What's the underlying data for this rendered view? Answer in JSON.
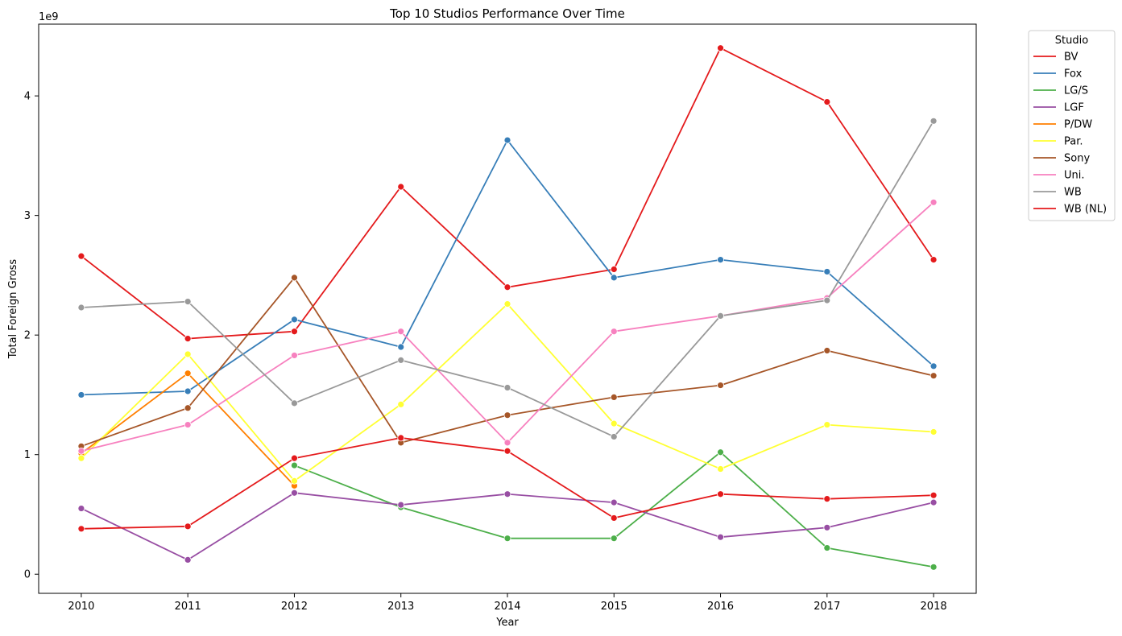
{
  "chart_data": {
    "type": "line",
    "title": "Top 10 Studios Performance Over Time",
    "xlabel": "Year",
    "ylabel": "Total Foreign Gross",
    "y_offset_label": "1e9",
    "x": [
      2010,
      2011,
      2012,
      2013,
      2014,
      2015,
      2016,
      2017,
      2018
    ],
    "x_tick_labels": [
      "2010",
      "2011",
      "2012",
      "2013",
      "2014",
      "2015",
      "2016",
      "2017",
      "2018"
    ],
    "y_ticks": [
      0,
      1,
      2,
      3,
      4
    ],
    "y_tick_labels": [
      "0",
      "1",
      "2",
      "3",
      "4"
    ],
    "ylim": [
      -0.16,
      4.6
    ],
    "xlim": [
      2009.6,
      2018.4
    ],
    "grid": false,
    "legend": {
      "title": "Studio",
      "placement": "outside-right-top"
    },
    "series": [
      {
        "name": "BV",
        "color": "#e41a1c",
        "points": [
          [
            2010,
            2.66
          ],
          [
            2011,
            1.97
          ],
          [
            2012,
            2.03
          ],
          [
            2013,
            3.24
          ],
          [
            2014,
            2.4
          ],
          [
            2015,
            2.55
          ],
          [
            2016,
            4.4
          ],
          [
            2017,
            3.95
          ],
          [
            2018,
            2.63
          ]
        ]
      },
      {
        "name": "Fox",
        "color": "#377eb8",
        "points": [
          [
            2010,
            1.5
          ],
          [
            2011,
            1.53
          ],
          [
            2012,
            2.13
          ],
          [
            2013,
            1.9
          ],
          [
            2014,
            3.63
          ],
          [
            2015,
            2.48
          ],
          [
            2016,
            2.63
          ],
          [
            2017,
            2.53
          ],
          [
            2018,
            1.74
          ]
        ]
      },
      {
        "name": "LG/S",
        "color": "#4daf4a",
        "points": [
          [
            2012,
            0.91
          ],
          [
            2013,
            0.56
          ],
          [
            2014,
            0.3
          ],
          [
            2015,
            0.3
          ],
          [
            2016,
            1.02
          ],
          [
            2017,
            0.22
          ],
          [
            2018,
            0.06
          ]
        ]
      },
      {
        "name": "LGF",
        "color": "#984ea3",
        "points": [
          [
            2010,
            0.55
          ],
          [
            2011,
            0.12
          ],
          [
            2012,
            0.68
          ],
          [
            2013,
            0.58
          ],
          [
            2014,
            0.67
          ],
          [
            2015,
            0.6
          ],
          [
            2016,
            0.31
          ],
          [
            2017,
            0.39
          ],
          [
            2018,
            0.6
          ]
        ]
      },
      {
        "name": "P/DW",
        "color": "#ff7f00",
        "points": [
          [
            2010,
            1.01
          ],
          [
            2011,
            1.68
          ],
          [
            2012,
            0.74
          ]
        ]
      },
      {
        "name": "Par.",
        "color": "#ffff33",
        "points": [
          [
            2010,
            0.97
          ],
          [
            2011,
            1.84
          ],
          [
            2012,
            0.78
          ],
          [
            2013,
            1.42
          ],
          [
            2014,
            2.26
          ],
          [
            2015,
            1.26
          ],
          [
            2016,
            0.88
          ],
          [
            2017,
            1.25
          ],
          [
            2018,
            1.19
          ]
        ]
      },
      {
        "name": "Sony",
        "color": "#a65628",
        "points": [
          [
            2010,
            1.07
          ],
          [
            2011,
            1.39
          ],
          [
            2012,
            2.48
          ],
          [
            2013,
            1.1
          ],
          [
            2014,
            1.33
          ],
          [
            2015,
            1.48
          ],
          [
            2016,
            1.58
          ],
          [
            2017,
            1.87
          ],
          [
            2018,
            1.66
          ]
        ]
      },
      {
        "name": "Uni.",
        "color": "#f781bf",
        "points": [
          [
            2010,
            1.03
          ],
          [
            2011,
            1.25
          ],
          [
            2012,
            1.83
          ],
          [
            2013,
            2.03
          ],
          [
            2014,
            1.1
          ],
          [
            2015,
            2.03
          ],
          [
            2016,
            2.16
          ],
          [
            2017,
            2.31
          ],
          [
            2018,
            3.11
          ]
        ]
      },
      {
        "name": "WB",
        "color": "#999999",
        "points": [
          [
            2010,
            2.23
          ],
          [
            2011,
            2.28
          ],
          [
            2012,
            1.43
          ],
          [
            2013,
            1.79
          ],
          [
            2014,
            1.56
          ],
          [
            2015,
            1.15
          ],
          [
            2016,
            2.16
          ],
          [
            2017,
            2.29
          ],
          [
            2018,
            3.79
          ]
        ]
      },
      {
        "name": "WB (NL)",
        "color": "#e41a1c",
        "points": [
          [
            2010,
            0.38
          ],
          [
            2011,
            0.4
          ],
          [
            2012,
            0.97
          ],
          [
            2013,
            1.14
          ],
          [
            2014,
            1.03
          ],
          [
            2015,
            0.47
          ],
          [
            2016,
            0.67
          ],
          [
            2017,
            0.63
          ],
          [
            2018,
            0.66
          ]
        ]
      }
    ]
  }
}
